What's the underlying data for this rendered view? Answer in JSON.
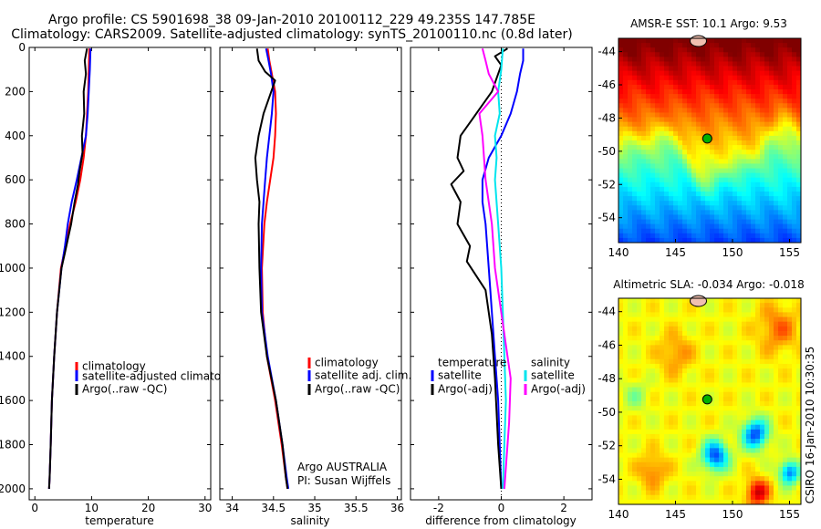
{
  "header": {
    "line1": "Argo profile: CS 5901698_38 09-Jan-2010 20100112_229 49.235S 147.785E",
    "line2": "Climatology: CARS2009. Satellite-adjusted climatology: synTS_20100110.nc (0.8d later)"
  },
  "colors": {
    "climatology": "#ff0000",
    "satellite": "#0000ff",
    "argo": "#000000",
    "salinity_satellite": "#00e5ee",
    "salinity_argo": "#ff00ff"
  },
  "chart_data": [
    {
      "type": "line",
      "id": "temperature",
      "xlabel": "temperature",
      "ylabel": "",
      "xlim": [
        -1,
        31
      ],
      "ylim": [
        2050,
        0
      ],
      "xticks": [
        0,
        10,
        20,
        30
      ],
      "yticks": [
        0,
        200,
        400,
        600,
        800,
        1000,
        1200,
        1400,
        1600,
        1800,
        2000
      ],
      "legend": {
        "placement": "lower-right",
        "entries": [
          "climatology",
          "satellite-adjusted climatology",
          "Argo(..raw -QC)"
        ]
      },
      "series": [
        {
          "name": "climatology",
          "color": "#ff0000",
          "x": [
            9.6,
            9.5,
            9.4,
            9.2,
            9.0,
            8.6,
            8.0,
            7.2,
            6.2,
            5.4,
            4.6,
            3.9,
            3.4,
            3.0,
            2.8,
            2.6,
            2.5
          ],
          "y": [
            5,
            100,
            200,
            300,
            400,
            500,
            600,
            700,
            800,
            900,
            1000,
            1200,
            1400,
            1600,
            1800,
            1950,
            2000
          ]
        },
        {
          "name": "satellite-adjusted climatology",
          "color": "#0000ff",
          "x": [
            9.8,
            9.7,
            9.5,
            9.3,
            9.0,
            8.2,
            7.4,
            6.5,
            5.8,
            5.3,
            4.7,
            3.9,
            3.4,
            3.0,
            2.8,
            2.6,
            2.5
          ],
          "y": [
            5,
            100,
            200,
            300,
            400,
            500,
            600,
            700,
            800,
            900,
            1000,
            1200,
            1400,
            1600,
            1800,
            1950,
            2000
          ]
        },
        {
          "name": "Argo(..raw -QC)",
          "color": "#000000",
          "x": [
            9.2,
            8.8,
            9.0,
            8.6,
            8.7,
            8.3,
            8.4,
            7.9,
            7.6,
            7.0,
            6.4,
            5.8,
            5.3,
            4.7,
            3.9,
            3.4,
            3.0,
            2.8,
            2.6,
            2.5
          ],
          "y": [
            5,
            60,
            120,
            200,
            300,
            400,
            480,
            560,
            620,
            700,
            800,
            870,
            930,
            1000,
            1200,
            1400,
            1600,
            1800,
            1950,
            2000
          ]
        }
      ]
    },
    {
      "type": "line",
      "id": "salinity",
      "xlabel": "salinity",
      "ylabel": "",
      "xlim": [
        33.85,
        36.05
      ],
      "ylim": [
        2050,
        0
      ],
      "xticks": [
        34,
        34.5,
        35,
        35.5,
        36
      ],
      "xticklabels": [
        "34",
        "34.5",
        "35",
        "35.5",
        "36"
      ],
      "legend": {
        "placement": "lower-right",
        "entries": [
          "climatology",
          "satellite adj. clim.",
          "Argo(..raw -QC)"
        ]
      },
      "annotation": [
        "Argo AUSTRALIA",
        "PI: Susan Wijffels"
      ],
      "series": [
        {
          "name": "climatology",
          "color": "#ff0000",
          "x": [
            34.43,
            34.45,
            34.48,
            34.52,
            34.53,
            34.52,
            34.5,
            34.46,
            34.42,
            34.39,
            34.36,
            34.37,
            34.42,
            34.52,
            34.6,
            34.65,
            34.67
          ],
          "y": [
            5,
            60,
            120,
            200,
            300,
            400,
            500,
            600,
            700,
            800,
            1000,
            1200,
            1400,
            1600,
            1800,
            1950,
            2000
          ]
        },
        {
          "name": "satellite adj. clim.",
          "color": "#0000ff",
          "x": [
            34.41,
            34.44,
            34.47,
            34.5,
            34.48,
            34.45,
            34.42,
            34.4,
            34.38,
            34.36,
            34.35,
            34.36,
            34.43,
            34.53,
            34.61,
            34.66,
            34.68
          ],
          "y": [
            5,
            60,
            120,
            200,
            300,
            400,
            500,
            600,
            700,
            800,
            1000,
            1200,
            1400,
            1600,
            1800,
            1950,
            2000
          ]
        },
        {
          "name": "Argo(..raw -QC)",
          "color": "#000000",
          "x": [
            34.3,
            34.32,
            34.4,
            34.52,
            34.38,
            34.32,
            34.28,
            34.3,
            34.33,
            34.32,
            34.33,
            34.35,
            34.42,
            34.53,
            34.61,
            34.65,
            34.67
          ],
          "y": [
            5,
            60,
            110,
            150,
            300,
            400,
            500,
            600,
            700,
            800,
            1000,
            1200,
            1400,
            1600,
            1800,
            1950,
            2000
          ]
        }
      ]
    },
    {
      "type": "line",
      "id": "difference",
      "xlabel": "difference from climatology",
      "ylabel": "",
      "xlim": [
        -2.9,
        2.9
      ],
      "ylim": [
        2050,
        0
      ],
      "xticks": [
        -2,
        0,
        2
      ],
      "legend": {
        "placement": "lower-center",
        "temperature": {
          "title": "temperature",
          "entries": [
            "satellite",
            "Argo(-adj)"
          ]
        },
        "salinity": {
          "title": "salinity",
          "entries": [
            "satellite",
            "Argo(-adj)"
          ]
        }
      },
      "zero_line": 0,
      "series": [
        {
          "name": "temperature satellite",
          "color": "#0000ff",
          "x": [
            0.7,
            0.7,
            0.6,
            0.5,
            0.3,
            0.0,
            -0.4,
            -0.6,
            -0.6,
            -0.5,
            -0.4,
            -0.3,
            -0.2,
            -0.1,
            -0.05,
            0.0
          ],
          "y": [
            5,
            60,
            120,
            200,
            300,
            400,
            500,
            600,
            700,
            800,
            1000,
            1200,
            1400,
            1600,
            1800,
            2000
          ]
        },
        {
          "name": "temperature Argo(-adj)",
          "color": "#000000",
          "x": [
            0.2,
            -0.2,
            0.0,
            -0.3,
            -0.8,
            -1.3,
            -1.4,
            -1.2,
            -1.6,
            -1.3,
            -1.4,
            -1.0,
            -1.1,
            -0.5,
            -0.3,
            -0.2,
            -0.1,
            0.0
          ],
          "y": [
            5,
            40,
            80,
            200,
            300,
            400,
            500,
            560,
            620,
            700,
            800,
            900,
            970,
            1100,
            1300,
            1500,
            1800,
            2000
          ]
        },
        {
          "name": "salinity satellite",
          "color": "#00e5ee",
          "x": [
            0.05,
            0.0,
            -0.1,
            -0.05,
            -0.2,
            -0.15,
            -0.2,
            -0.1,
            0.0,
            0.05,
            0.1,
            0.15,
            0.1,
            0.05
          ],
          "y": [
            5,
            100,
            200,
            300,
            400,
            500,
            600,
            800,
            1000,
            1200,
            1400,
            1600,
            1800,
            2000
          ]
        },
        {
          "name": "salinity Argo(-adj)",
          "color": "#ff00ff",
          "x": [
            -0.6,
            -0.5,
            -0.4,
            -0.1,
            -0.7,
            -0.6,
            -0.5,
            -0.3,
            -0.2,
            0.1,
            0.3,
            0.25,
            0.1
          ],
          "y": [
            5,
            60,
            120,
            200,
            300,
            400,
            600,
            800,
            1000,
            1300,
            1500,
            1700,
            2000
          ]
        }
      ]
    },
    {
      "type": "heatmap",
      "id": "sst-map",
      "title": "AMSR-E SST: 10.1 Argo: 9.53",
      "xlim": [
        140,
        156
      ],
      "ylim": [
        -55.5,
        -43.2
      ],
      "xticks": [
        140,
        145,
        150,
        155
      ],
      "yticks": [
        -44,
        -46,
        -48,
        -50,
        -52,
        -54
      ],
      "marker": {
        "lon": 147.785,
        "lat": -49.235
      },
      "colormap": "jet"
    },
    {
      "type": "heatmap",
      "id": "sla-map",
      "title": "Altimetric SLA: -0.034 Argo: -0.018",
      "xlim": [
        140,
        156
      ],
      "ylim": [
        -55.5,
        -43.2
      ],
      "xticks": [
        140,
        145,
        150,
        155
      ],
      "yticks": [
        -44,
        -46,
        -48,
        -50,
        -52,
        -54
      ],
      "marker": {
        "lon": 147.785,
        "lat": -49.235
      },
      "colormap": "jet"
    }
  ],
  "footer": {
    "stamp": "CSIRO 16-Jan-2010 10:30:35"
  }
}
